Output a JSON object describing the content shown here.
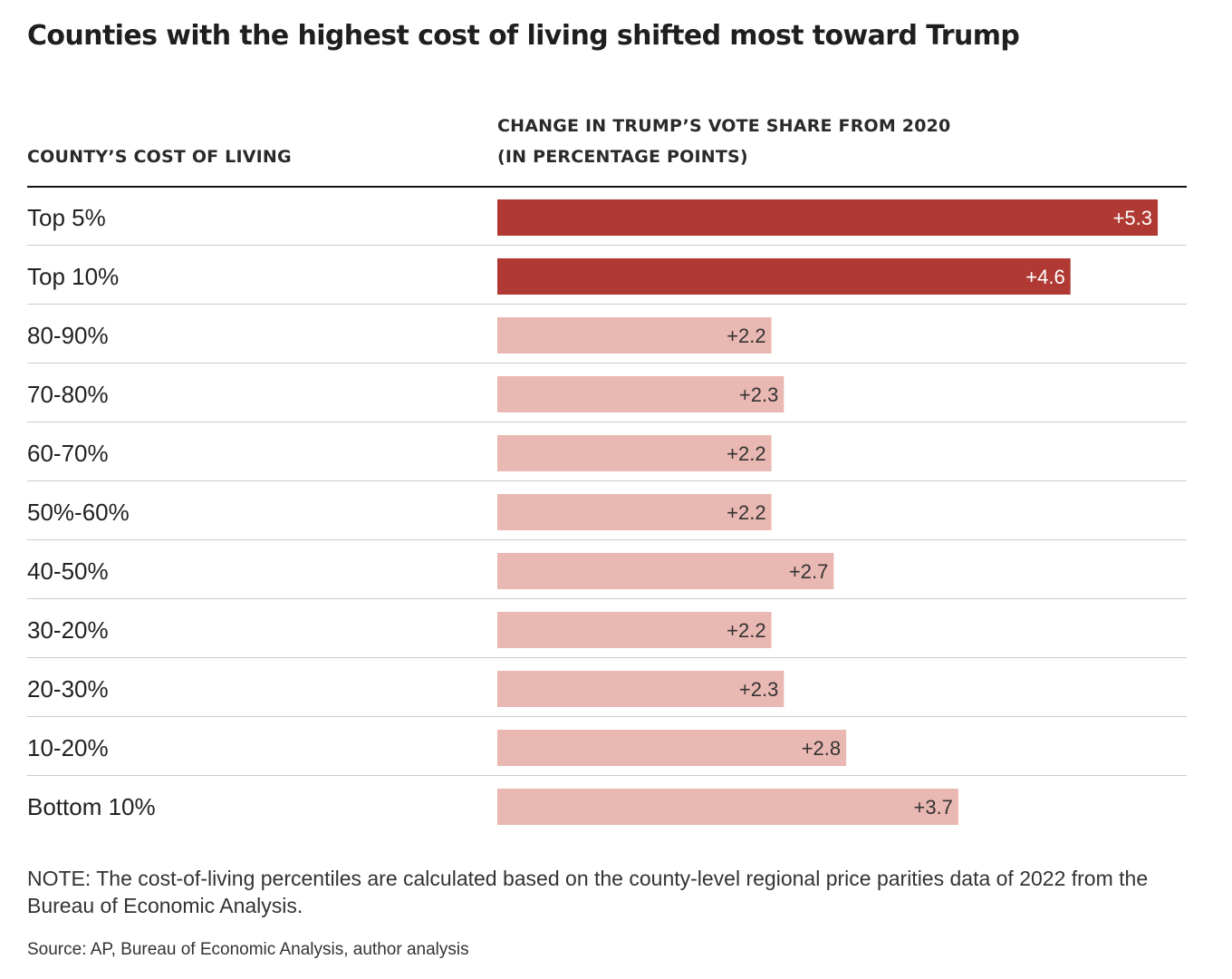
{
  "chart_data": {
    "type": "bar",
    "orientation": "horizontal",
    "title": "Counties with the highest cost of living shifted most toward Trump",
    "category_header": "COUNTY’S COST OF LIVING",
    "value_header": [
      "CHANGE IN TRUMP’S VOTE SHARE FROM 2020",
      "(IN PERCENTAGE POINTS)"
    ],
    "categories": [
      "Top 5%",
      "Top 10%",
      "80-90%",
      "70-80%",
      "60-70%",
      "50%-60%",
      "40-50%",
      "30-20%",
      "20-30%",
      "10-20%",
      "Bottom 10%"
    ],
    "values": [
      5.3,
      4.6,
      2.2,
      2.3,
      2.2,
      2.2,
      2.7,
      2.2,
      2.3,
      2.8,
      3.7
    ],
    "value_labels": [
      "+5.3",
      "+4.6",
      "+2.2",
      "+2.3",
      "+2.2",
      "+2.2",
      "+2.7",
      "+2.2",
      "+2.3",
      "+2.8",
      "+3.7"
    ],
    "highlight": [
      true,
      true,
      false,
      false,
      false,
      false,
      false,
      false,
      false,
      false,
      false
    ],
    "colors": {
      "highlight": "#b03a33",
      "normal": "#eab8b2",
      "highlight_label": "#ffffff",
      "normal_label": "#333333",
      "rule": "#111111",
      "gridline": "#cccccc"
    },
    "xlim": [
      0,
      5.3
    ],
    "grid": false
  },
  "note": "NOTE: The cost-of-living percentiles are calculated based on the county-level regional price parities data of 2022 from the Bureau of Economic Analysis.",
  "source": "Source: AP, Bureau of Economic Analysis, author analysis"
}
